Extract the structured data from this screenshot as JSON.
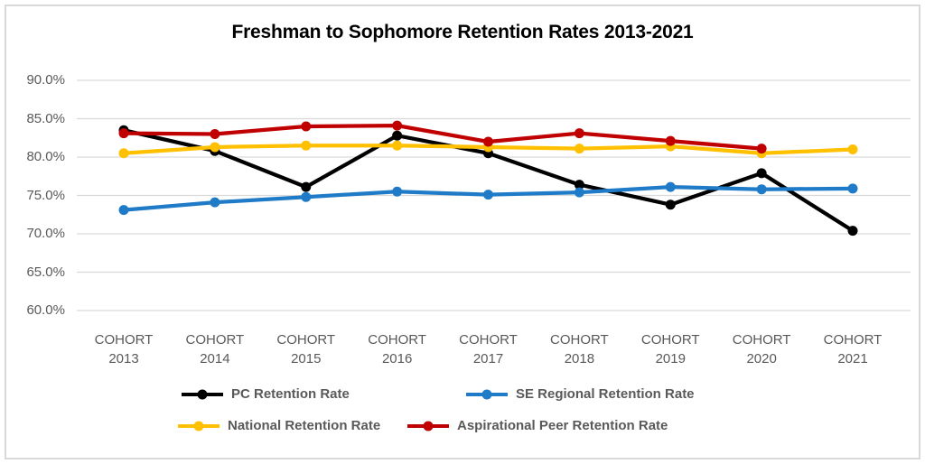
{
  "title": "Freshman to Sophomore Retention Rates 2013-2021",
  "chart_data": {
    "type": "line",
    "title": "Freshman to Sophomore Retention Rates 2013-2021",
    "categories": [
      "COHORT\n2013",
      "COHORT\n2014",
      "COHORT\n2015",
      "COHORT\n2016",
      "COHORT\n2017",
      "COHORT\n2018",
      "COHORT\n2019",
      "COHORT\n2020",
      "COHORT\n2021"
    ],
    "series": [
      {
        "name": "PC Retention Rate",
        "color": "#000000",
        "values": [
          83.5,
          80.8,
          76.1,
          82.8,
          80.5,
          76.4,
          73.8,
          77.9,
          70.4
        ]
      },
      {
        "name": "SE Regional Retention Rate",
        "color": "#1F7BC7",
        "values": [
          73.1,
          74.1,
          74.8,
          75.5,
          75.1,
          75.4,
          76.1,
          75.8,
          75.9
        ]
      },
      {
        "name": "National Retention Rate",
        "color": "#FFC000",
        "values": [
          80.5,
          81.3,
          81.5,
          81.5,
          81.3,
          81.1,
          81.4,
          80.5,
          81.0
        ]
      },
      {
        "name": "Aspirational Peer Retention Rate",
        "color": "#C00000",
        "values": [
          83.1,
          83.0,
          84.0,
          84.1,
          82.0,
          83.1,
          82.1,
          81.1,
          null
        ]
      }
    ],
    "y_ticks": [
      "90.0%",
      "85.0%",
      "80.0%",
      "75.0%",
      "70.0%",
      "65.0%",
      "60.0%"
    ],
    "ylim": [
      60,
      90
    ],
    "xlabel": "",
    "ylabel": "",
    "grid": true,
    "legend_position": "bottom"
  },
  "colors": {
    "grid": "#D9D9D9",
    "axis_text": "#595959",
    "legend_text": "#595959",
    "border": "#D9D9D9",
    "background": "#FFFFFF"
  }
}
